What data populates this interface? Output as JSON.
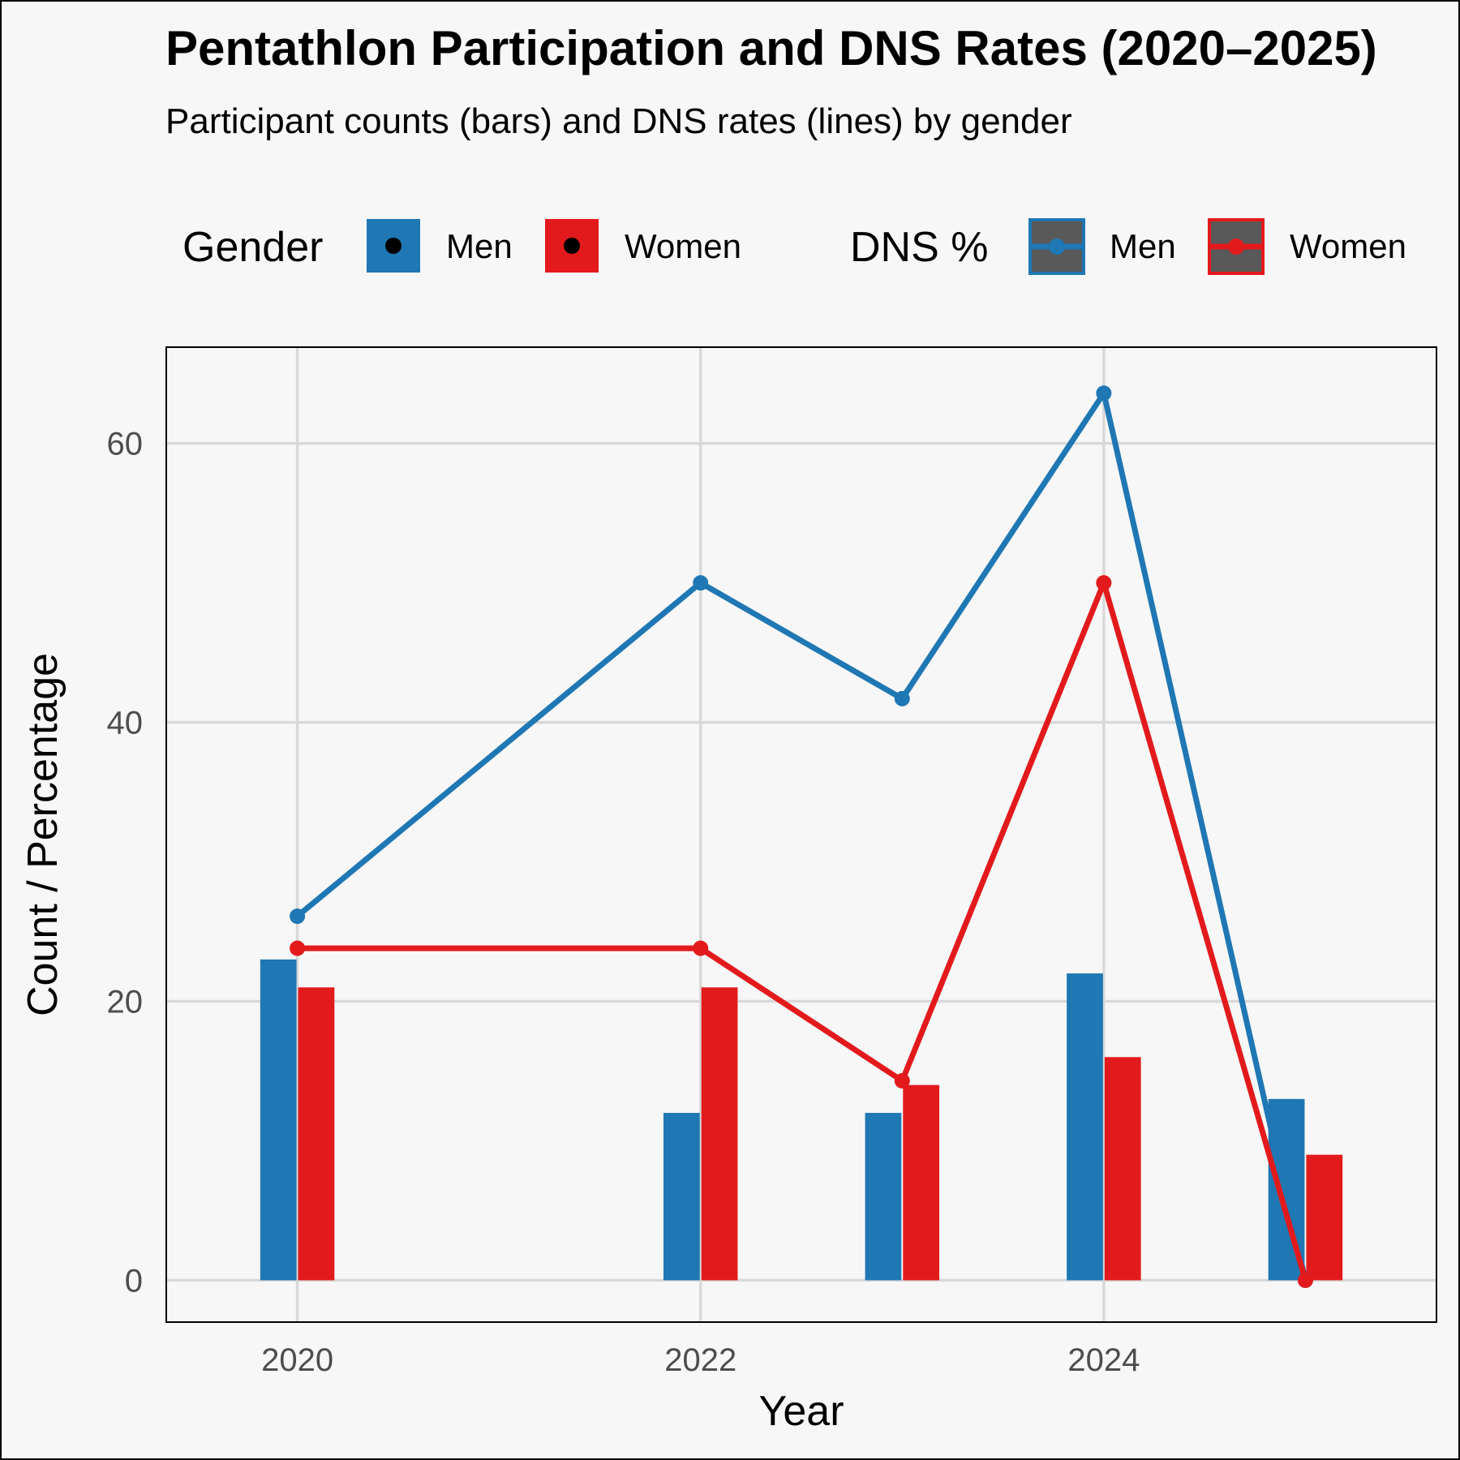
{
  "chart_data": {
    "type": "bar",
    "title": "Pentathlon Participation and DNS Rates (2020–2025)",
    "subtitle": "Participant counts (bars) and DNS rates (lines) by gender",
    "xlabel": "Year",
    "ylabel": "Count / Percentage",
    "x_ticks": [
      2020,
      2022,
      2024
    ],
    "y_ticks": [
      0,
      20,
      40,
      60
    ],
    "xlim": [
      2019.35,
      2025.65
    ],
    "ylim": [
      -3,
      66.9
    ],
    "grid": true,
    "legend_position": "top",
    "bar_legend": {
      "title": "Gender",
      "entries": [
        {
          "label": "Men",
          "color": "#1f77b4"
        },
        {
          "label": "Women",
          "color": "#e31a1c"
        }
      ]
    },
    "line_legend": {
      "title": "DNS %",
      "entries": [
        {
          "label": "Men",
          "color": "#1f77b4"
        },
        {
          "label": "Women",
          "color": "#e31a1c"
        }
      ]
    },
    "bars": [
      {
        "name": "Men",
        "color": "#1f77b4",
        "points": [
          {
            "x": 2020,
            "y": 23
          },
          {
            "x": 2022,
            "y": 12
          },
          {
            "x": 2023,
            "y": 12
          },
          {
            "x": 2024,
            "y": 22
          },
          {
            "x": 2025,
            "y": 13
          }
        ]
      },
      {
        "name": "Women",
        "color": "#e31a1c",
        "points": [
          {
            "x": 2020,
            "y": 21
          },
          {
            "x": 2022,
            "y": 21
          },
          {
            "x": 2023,
            "y": 14
          },
          {
            "x": 2024,
            "y": 16
          },
          {
            "x": 2025,
            "y": 9
          }
        ]
      }
    ],
    "lines": [
      {
        "name": "Men",
        "color": "#1f77b4",
        "points": [
          {
            "x": 2020,
            "y": 26.1
          },
          {
            "x": 2022,
            "y": 50
          },
          {
            "x": 2023,
            "y": 41.7
          },
          {
            "x": 2024,
            "y": 63.6
          },
          {
            "x": 2025,
            "y": 0
          }
        ]
      },
      {
        "name": "Women",
        "color": "#e31a1c",
        "points": [
          {
            "x": 2020,
            "y": 23.8
          },
          {
            "x": 2022,
            "y": 23.8
          },
          {
            "x": 2023,
            "y": 14.3
          },
          {
            "x": 2024,
            "y": 50
          },
          {
            "x": 2025,
            "y": 0
          }
        ]
      }
    ]
  }
}
